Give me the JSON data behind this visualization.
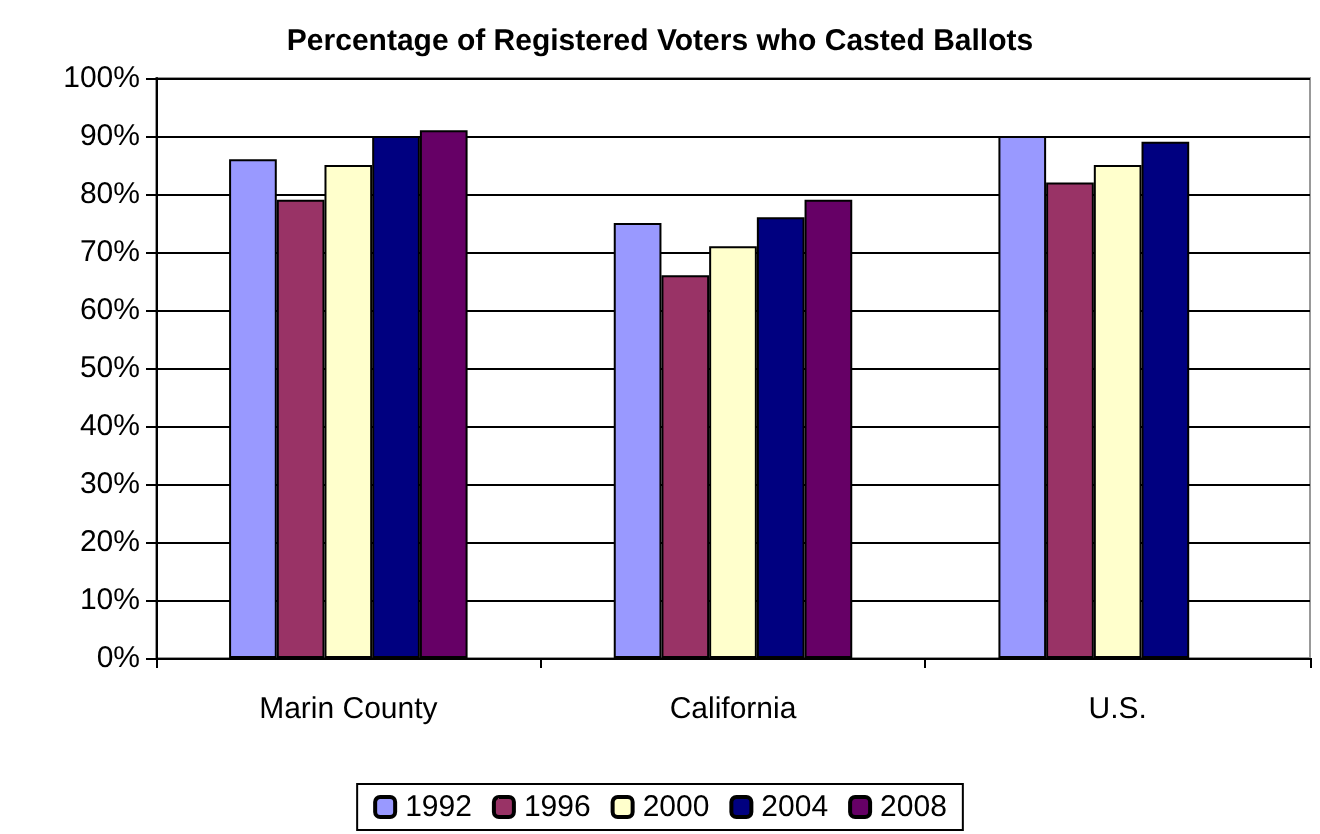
{
  "chart_data": {
    "type": "bar",
    "title": "Percentage of Registered Voters who Casted Ballots",
    "categories": [
      "Marin County",
      "California",
      "U.S."
    ],
    "series": [
      {
        "name": "1992",
        "color": "#9999ff",
        "values": [
          86,
          75,
          90
        ]
      },
      {
        "name": "1996",
        "color": "#993366",
        "values": [
          79,
          66,
          82
        ]
      },
      {
        "name": "2000",
        "color": "#ffffcc",
        "values": [
          85,
          71,
          85
        ]
      },
      {
        "name": "2004",
        "color": "#000080",
        "values": [
          90,
          76,
          89
        ]
      },
      {
        "name": "2008",
        "color": "#660066",
        "values": [
          91,
          79,
          null
        ]
      }
    ],
    "ylim": [
      0,
      100
    ],
    "yticks": [
      {
        "value": 0,
        "label": "0%"
      },
      {
        "value": 10,
        "label": "10%"
      },
      {
        "value": 20,
        "label": "20%"
      },
      {
        "value": 30,
        "label": "30%"
      },
      {
        "value": 40,
        "label": "40%"
      },
      {
        "value": 50,
        "label": "50%"
      },
      {
        "value": 60,
        "label": "60%"
      },
      {
        "value": 70,
        "label": "70%"
      },
      {
        "value": 80,
        "label": "80%"
      },
      {
        "value": 90,
        "label": "90%"
      },
      {
        "value": 100,
        "label": "100%"
      }
    ],
    "grid": "y",
    "legend": "bottom"
  }
}
